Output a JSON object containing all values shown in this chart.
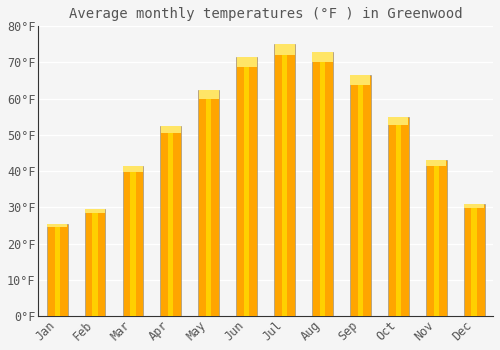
{
  "title": "Average monthly temperatures (°F ) in Greenwood",
  "months": [
    "Jan",
    "Feb",
    "Mar",
    "Apr",
    "May",
    "Jun",
    "Jul",
    "Aug",
    "Sep",
    "Oct",
    "Nov",
    "Dec"
  ],
  "values": [
    25.5,
    29.5,
    41.5,
    52.5,
    62.5,
    71.5,
    75.0,
    73.0,
    66.5,
    55.0,
    43.0,
    31.0
  ],
  "bar_color_main": "#FFA500",
  "bar_color_highlight": "#FFD000",
  "bar_edge_color": "#888888",
  "background_color": "#F5F5F5",
  "plot_bg_color": "#F5F5F5",
  "grid_color": "#FFFFFF",
  "text_color": "#555555",
  "axis_color": "#333333",
  "ylim": [
    0,
    80
  ],
  "yticks": [
    0,
    10,
    20,
    30,
    40,
    50,
    60,
    70,
    80
  ],
  "title_fontsize": 10,
  "tick_fontsize": 8.5,
  "bar_width": 0.55
}
